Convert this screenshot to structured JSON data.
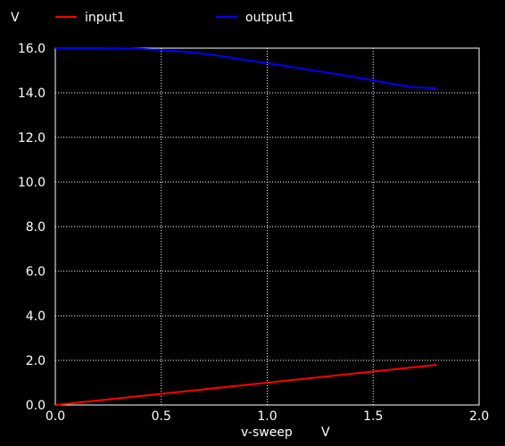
{
  "chart_data": {
    "type": "line",
    "xlabel": "v-sweep",
    "xunit": "V",
    "yunit": "V",
    "xlim": [
      0.0,
      2.0
    ],
    "ylim": [
      0.0,
      16.0
    ],
    "xticks": [
      "0.0",
      "0.5",
      "1.0",
      "1.5",
      "2.0"
    ],
    "yticks": [
      "0.0",
      "2.0",
      "4.0",
      "6.0",
      "8.0",
      "10.0",
      "12.0",
      "14.0",
      "16.0"
    ],
    "grid": true,
    "legend": "top",
    "series": [
      {
        "name": "input1",
        "color": "#ff0000",
        "x": [
          0.0,
          0.3,
          0.6,
          0.9,
          1.2,
          1.5,
          1.8
        ],
        "y": [
          0.0,
          0.3,
          0.6,
          0.9,
          1.2,
          1.5,
          1.8
        ]
      },
      {
        "name": "output1",
        "color": "#0000ff",
        "x": [
          0.0,
          0.1,
          0.2,
          0.3,
          0.4,
          0.5,
          0.6,
          0.7,
          0.8,
          0.9,
          1.0,
          1.1,
          1.2,
          1.3,
          1.4,
          1.5,
          1.6,
          1.7,
          1.8
        ],
        "y": [
          16.0,
          16.0,
          16.0,
          15.99,
          15.97,
          15.92,
          15.85,
          15.75,
          15.62,
          15.47,
          15.33,
          15.18,
          15.03,
          14.88,
          14.72,
          14.56,
          14.38,
          14.24,
          14.2
        ]
      }
    ]
  }
}
